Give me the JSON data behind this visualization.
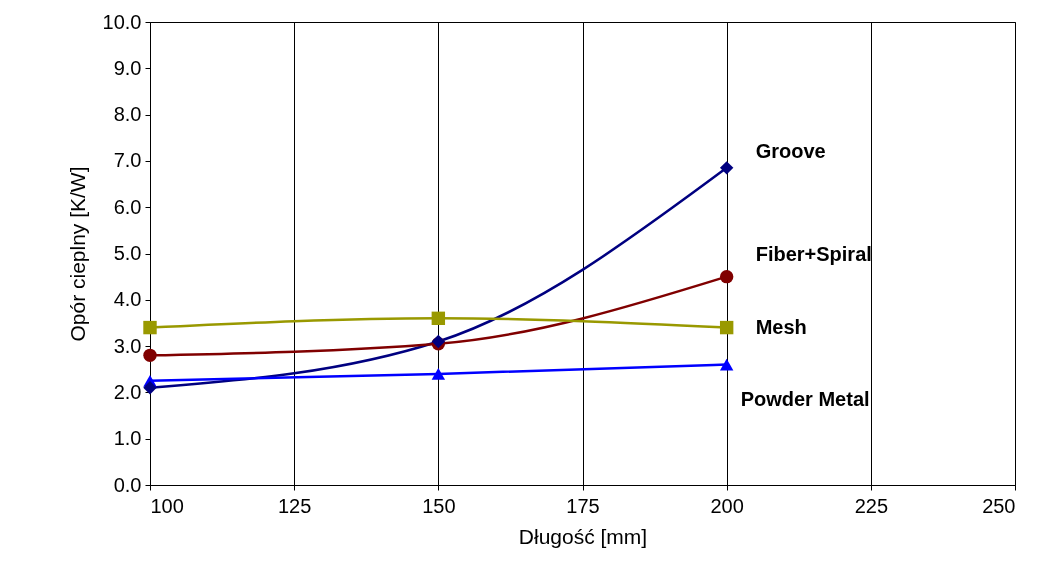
{
  "chart_data": {
    "type": "line",
    "xlabel": "Długość [mm]",
    "ylabel": "Opór cieplny  [K/W]",
    "x": [
      100,
      150,
      200
    ],
    "series": [
      {
        "name": "Groove",
        "color": "#000080",
        "marker": "diamond",
        "values": [
          2.1,
          3.1,
          6.85
        ]
      },
      {
        "name": "Fiber+Spiral",
        "color": "#800000",
        "marker": "circle",
        "values": [
          2.8,
          3.05,
          4.5
        ]
      },
      {
        "name": "Mesh",
        "color": "#999900",
        "marker": "square",
        "values": [
          3.4,
          3.6,
          3.4
        ]
      },
      {
        "name": "Powder Metal",
        "color": "#0000ff",
        "marker": "triangle",
        "values": [
          2.25,
          2.4,
          2.6
        ]
      }
    ],
    "xlim": [
      100,
      250
    ],
    "xticks": [
      100,
      125,
      150,
      175,
      200,
      225,
      250
    ],
    "ylim": [
      0,
      10
    ],
    "yticks": [
      {
        "value": 0,
        "label": "0.0"
      },
      {
        "value": 1,
        "label": "1.0"
      },
      {
        "value": 2,
        "label": "2.0"
      },
      {
        "value": 3,
        "label": "3.0"
      },
      {
        "value": 4,
        "label": "4.0"
      },
      {
        "value": 5,
        "label": "5.0"
      },
      {
        "value": 6,
        "label": "6.0"
      },
      {
        "value": 7,
        "label": "7.0"
      },
      {
        "value": 8,
        "label": "8.0"
      },
      {
        "value": 9,
        "label": "9.0"
      },
      {
        "value": 10,
        "label": "10.0"
      }
    ],
    "grid": "x",
    "legend": false,
    "line_style": "solid"
  }
}
